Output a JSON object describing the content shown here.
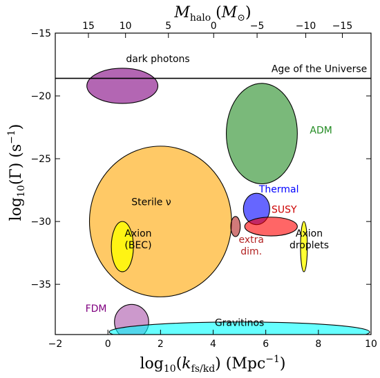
{
  "chart_data": {
    "type": "scatter",
    "title": "",
    "xlabel": "log10(k_fs/kd) (Mpc^-1)",
    "ylabel": "log10(Γ) (s^-1)",
    "x2label": "M_halo (M_⊙)",
    "xlim": [
      -2,
      10
    ],
    "ylim": [
      -39,
      -15
    ],
    "grid": false,
    "x_ticks": [
      -2,
      0,
      2,
      4,
      6,
      8,
      10
    ],
    "x_tick_labels": [
      "−2",
      "0",
      "2",
      "4",
      "6",
      "8",
      "10"
    ],
    "y_ticks": [
      -35,
      -30,
      -25,
      -20,
      -15
    ],
    "y_tick_labels": [
      "−35",
      "−30",
      "−25",
      "−20",
      "−15"
    ],
    "x2_ticks": [
      {
        "label": "15",
        "x": -0.74
      },
      {
        "label": "10",
        "x": 0.67
      },
      {
        "label": "5",
        "x": 2.3
      },
      {
        "label": "0",
        "x": 4.02
      },
      {
        "label": "−5",
        "x": 5.67
      },
      {
        "label": "−10",
        "x": 7.52
      },
      {
        "label": "−15",
        "x": 8.91
      }
    ],
    "reference_lines": [
      {
        "label": "Age of the Universe",
        "y": -18.6,
        "label_x": 9.85,
        "label_y": -18.1
      }
    ],
    "regions": [
      {
        "label": "dark photons",
        "cx": 0.55,
        "cy": -19.2,
        "rx": 1.35,
        "ry": 1.4,
        "color": "#800080",
        "alpha": 0.6,
        "label_x": 1.9,
        "label_y": -17.3,
        "label_color": "#000000"
      },
      {
        "label": "ADM",
        "cx": 5.85,
        "cy": -23.0,
        "rx": 1.35,
        "ry": 4.0,
        "color": "#228B22",
        "alpha": 0.6,
        "label_x": 8.1,
        "label_y": -23.0,
        "label_color": "#228B22"
      },
      {
        "label": "Sterile ν",
        "cx": 2.0,
        "cy": -30.0,
        "rx": 2.7,
        "ry": 6.0,
        "color": "#FFA500",
        "alpha": 0.6,
        "label_x": 1.65,
        "label_y": -28.7,
        "label_color": "#000000"
      },
      {
        "label": "Thermal",
        "cx": 5.65,
        "cy": -29.0,
        "rx": 0.5,
        "ry": 1.25,
        "color": "#0000FF",
        "alpha": 0.6,
        "label_x": 6.5,
        "label_y": -27.7,
        "label_color": "#0000FF"
      },
      {
        "label": "SUSY",
        "cx": 6.2,
        "cy": -30.4,
        "rx": 1.0,
        "ry": 0.75,
        "color": "#FF0000",
        "alpha": 0.6,
        "label_x": 6.7,
        "label_y": -29.3,
        "label_color": "#CC0000"
      },
      {
        "label": "Axion\n(BEC)",
        "cx": 0.55,
        "cy": -32.0,
        "rx": 0.42,
        "ry": 2.0,
        "color": "#FFFF00",
        "alpha": 0.8,
        "label_x": 1.15,
        "label_y": -31.2,
        "label_color": "#000000"
      },
      {
        "label": "extra\ndim.",
        "cx": 4.85,
        "cy": -30.4,
        "rx": 0.18,
        "ry": 0.8,
        "color": "#B22222",
        "alpha": 0.6,
        "label_x": 5.45,
        "label_y": -31.7,
        "label_color": "#B22222"
      },
      {
        "label": "Axion\ndroplets",
        "cx": 7.45,
        "cy": -32.0,
        "rx": 0.13,
        "ry": 2.0,
        "color": "#FFFF00",
        "alpha": 0.8,
        "label_x": 7.65,
        "label_y": -31.2,
        "label_color": "#000000"
      },
      {
        "label": "FDM",
        "cx": 0.9,
        "cy": -38.0,
        "rx": 0.65,
        "ry": 1.4,
        "color": "#800080",
        "alpha": 0.4,
        "label_x": -0.45,
        "label_y": -37.2,
        "label_color": "#800080"
      },
      {
        "label": "Gravitinos",
        "cx": 5.0,
        "cy": -38.8,
        "rx": 4.95,
        "ry": 0.8,
        "color": "#00FFFF",
        "alpha": 0.6,
        "label_x": 5.0,
        "label_y": -38.3,
        "label_color": "#000000"
      }
    ]
  }
}
